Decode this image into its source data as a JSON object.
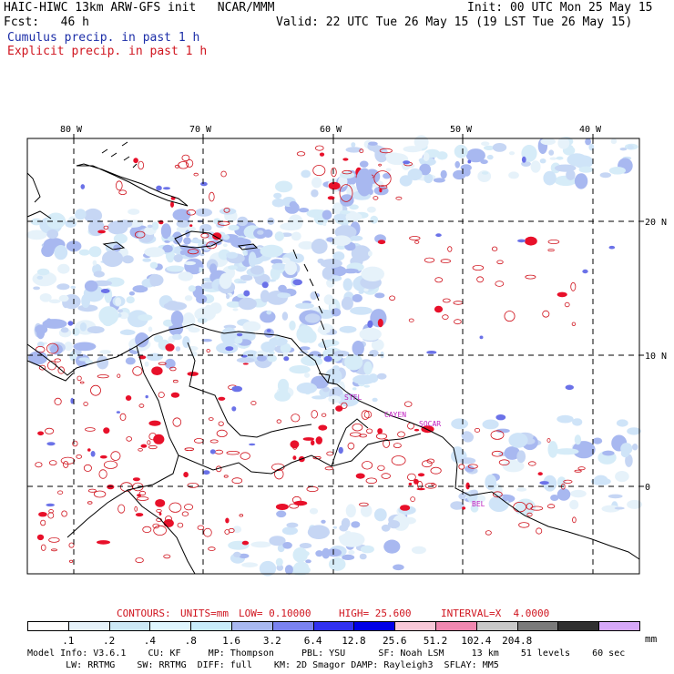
{
  "header": {
    "title": "HAIC-HIWC 13km ARW-GFS init   NCAR/MMM",
    "init": "Init: 00 UTC Mon 25 May 15",
    "fcst": "Fcst:   46 h",
    "valid": "Valid: 22 UTC Tue 26 May 15 (19 LST Tue 26 May 15)",
    "legend_cumulus": "Cumulus precip. in past 1 h",
    "legend_explicit": "Explicit precip. in past 1 h"
  },
  "map": {
    "lon_labels": [
      "80 W",
      "70 W",
      "60 W",
      "50 W",
      "40 W"
    ],
    "lat_labels": [
      "20 N",
      "10 N",
      "0"
    ],
    "stations": [
      "STFL",
      "CAYEN",
      "SOCAR",
      "BEL"
    ],
    "colors": {
      "cumulus": "#1c2ea8",
      "explicit": "#d0141e",
      "coast": "#000000"
    }
  },
  "contours": {
    "prefix": "CONTOURS:",
    "units": "UNITS=mm",
    "low": "LOW= 0.10000",
    "high": "HIGH= 25.600",
    "interval": "INTERVAL=X  4.0000"
  },
  "colorbar": {
    "labels": [
      ".1",
      ".2",
      ".4",
      ".8",
      "1.6",
      "3.2",
      "6.4",
      "12.8",
      "25.6",
      "51.2",
      "102.4",
      "204.8"
    ],
    "unit": "mm",
    "colors": [
      "#ffffff",
      "#e6f2fa",
      "#cce8f5",
      "#dff6ff",
      "#c8ecfa",
      "#a8b8f0",
      "#7a82f0",
      "#3232f0",
      "#0000e6",
      "#f8c8d8",
      "#f088b0",
      "#c8c8c8",
      "#7a7a7a",
      "#303030",
      "#d6a8f8"
    ]
  },
  "footer": {
    "line1": "Model Info: V3.6.1    CU: KF     MP: Thompson     PBL: YSU      SF: Noah LSM     13 km    51 levels    60 sec",
    "line2": "       LW: RRTMG    SW: RRTMG  DIFF: full    KM: 2D Smagor DAMP: Rayleigh3  SFLAY: MM5"
  }
}
